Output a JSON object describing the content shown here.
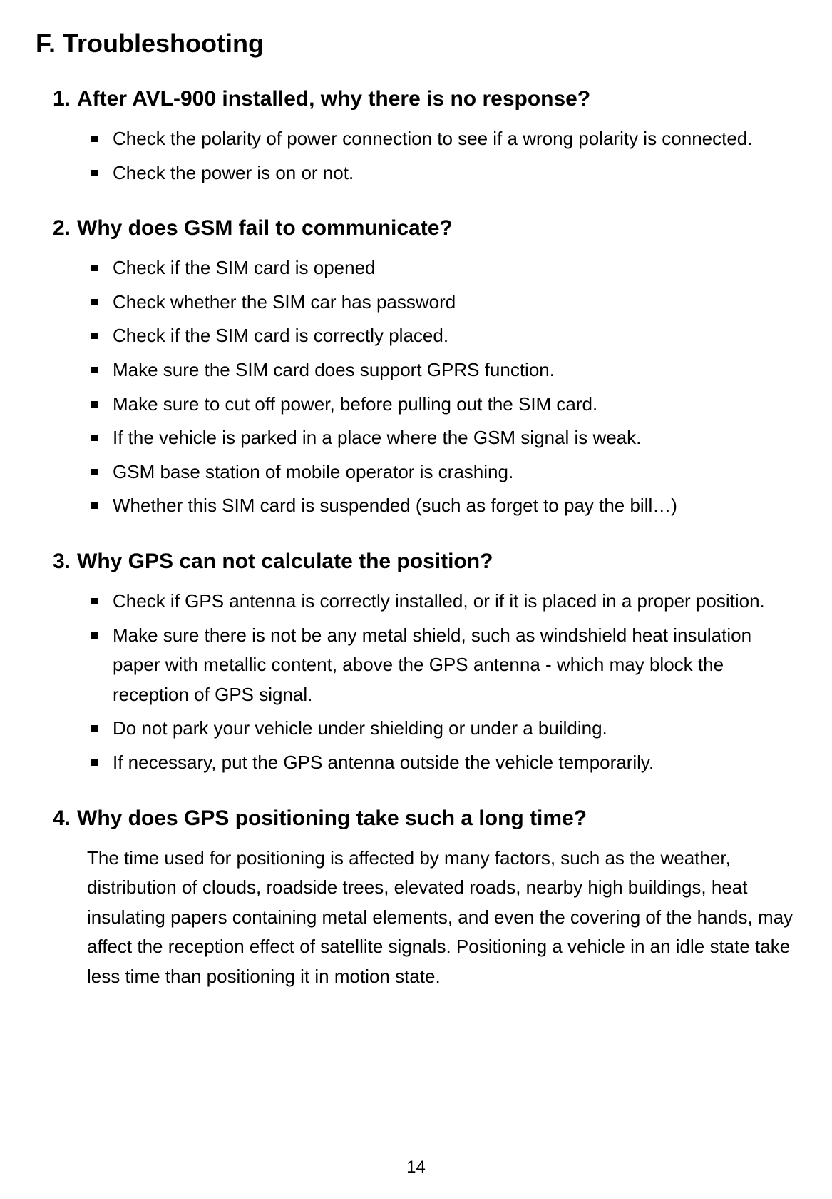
{
  "title": "F. Troubleshooting",
  "sections": [
    {
      "number": "1.",
      "heading": "After AVL-900 installed, why there is no response?",
      "type": "list",
      "items": [
        "Check the polarity of power connection to see if a wrong polarity is connected.",
        "Check the power is on or not."
      ]
    },
    {
      "number": "2.",
      "heading": "Why does GSM fail to communicate?",
      "type": "list",
      "items": [
        "Check if the SIM card is opened",
        "Check whether the SIM car has password",
        "Check if the SIM card is correctly placed.",
        "Make sure the SIM card does support GPRS function.",
        "Make sure to cut off power, before pulling out the SIM card.",
        "If the vehicle is parked in a place where the GSM signal is weak.",
        "GSM base station of mobile operator is crashing.",
        "Whether this SIM card is suspended (such as forget to pay the bill…)"
      ]
    },
    {
      "number": "3.",
      "heading": "Why GPS can not calculate the position?",
      "type": "list",
      "items": [
        "Check if GPS antenna is correctly installed, or if it is placed in a proper position.",
        "Make sure there is not be any metal shield, such as windshield heat insulation paper with metallic content, above the GPS antenna - which may block the reception of GPS signal.",
        "Do not park your vehicle under shielding or under a building.",
        "If necessary, put the GPS antenna outside the vehicle temporarily."
      ]
    },
    {
      "number": "4.",
      "heading": "Why does GPS positioning take such a long time?",
      "type": "paragraph",
      "paragraph": "The time used for positioning is affected by many factors, such as the weather, distribution of clouds, roadside trees, elevated roads, nearby high buildings, heat insulating papers containing metal elements, and even the covering of the hands, may affect the reception effect of satellite signals. Positioning a vehicle in an idle state take less time than positioning it in motion state."
    }
  ],
  "page_number": "14",
  "colors": {
    "text": "#000000",
    "background": "#ffffff",
    "bullet": "#000000"
  },
  "typography": {
    "title_fontsize": 36,
    "heading_fontsize": 30,
    "body_fontsize": 26,
    "page_number_fontsize": 24,
    "font_family": "Arial"
  }
}
